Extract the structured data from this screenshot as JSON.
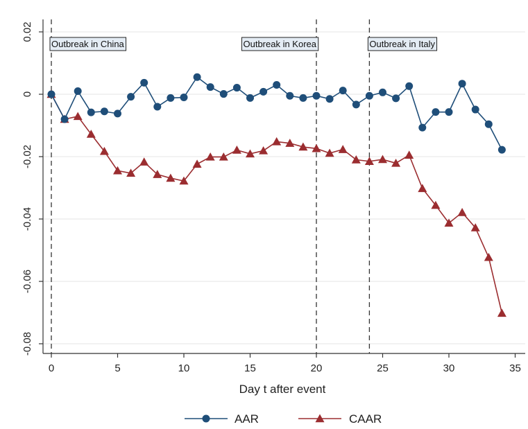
{
  "chart_data": {
    "type": "line",
    "title": "",
    "xlabel": "Day t after event",
    "ylabel": "",
    "xlim": [
      0,
      35
    ],
    "ylim": [
      -0.08,
      0.02
    ],
    "x_ticks": [
      0,
      5,
      10,
      15,
      20,
      25,
      30,
      35
    ],
    "y_ticks": [
      0.02,
      0,
      -0.02,
      -0.04,
      -0.06,
      -0.08
    ],
    "x_tick_labels": [
      "0",
      "5",
      "10",
      "15",
      "20",
      "25",
      "30",
      "35"
    ],
    "y_tick_labels": [
      "0.02",
      "0",
      "-0.02",
      "-0.04",
      "-0.06",
      "-0.08"
    ],
    "grid": "horizontal",
    "legend": "bottom",
    "x": [
      0,
      1,
      2,
      3,
      4,
      5,
      6,
      7,
      8,
      9,
      10,
      11,
      12,
      13,
      14,
      15,
      16,
      17,
      18,
      19,
      20,
      21,
      22,
      23,
      24,
      25,
      26,
      27,
      28,
      29,
      30,
      31,
      32,
      33,
      34
    ],
    "series": [
      {
        "name": "AAR",
        "color": "#1f4e79",
        "marker": "circle",
        "values": [
          0.0,
          -0.008,
          0.001,
          -0.0058,
          -0.0055,
          -0.0062,
          -0.0008,
          0.0037,
          -0.004,
          -0.0012,
          -0.001,
          0.0055,
          0.0023,
          0.0001,
          0.0021,
          -0.0012,
          0.0008,
          0.003,
          -0.0005,
          -0.0012,
          -0.0005,
          -0.0015,
          0.0012,
          -0.0033,
          -0.0005,
          0.0006,
          -0.0013,
          0.0026,
          -0.0107,
          -0.0057,
          -0.0057,
          0.0034,
          -0.0049,
          -0.0096,
          -0.0178
        ]
      },
      {
        "name": "CAAR",
        "color": "#9b2d30",
        "marker": "triangle",
        "values": [
          0.0,
          -0.008,
          -0.0071,
          -0.0128,
          -0.0183,
          -0.0245,
          -0.0253,
          -0.0217,
          -0.0257,
          -0.0269,
          -0.0278,
          -0.0224,
          -0.0201,
          -0.0201,
          -0.0179,
          -0.0191,
          -0.0181,
          -0.0152,
          -0.0157,
          -0.0169,
          -0.0174,
          -0.0189,
          -0.0177,
          -0.021,
          -0.0215,
          -0.0209,
          -0.0221,
          -0.0195,
          -0.0302,
          -0.0356,
          -0.0413,
          -0.0379,
          -0.0428,
          -0.0523,
          -0.0702
        ]
      }
    ],
    "annotations": [
      {
        "x": 0,
        "label": "Outbreak in China",
        "label_x": 0,
        "label_anchor": "start"
      },
      {
        "x": 20,
        "label": "Outbreak in Korea",
        "label_x": 20,
        "label_anchor": "end"
      },
      {
        "x": 24,
        "label": "Outbreak in Italy",
        "label_x": 24,
        "label_anchor": "start"
      }
    ]
  }
}
